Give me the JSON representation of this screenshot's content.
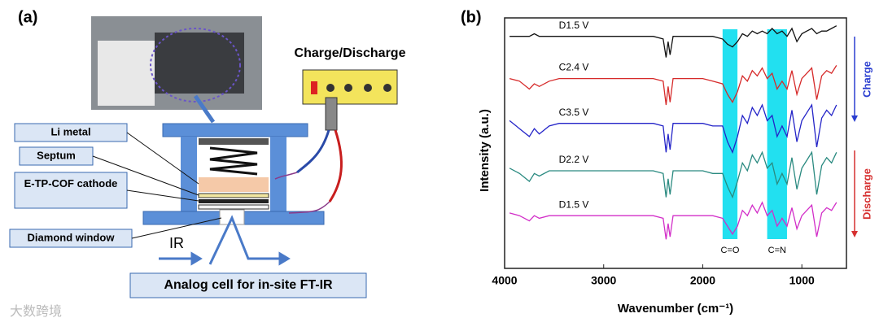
{
  "panel_a": {
    "label": "(a)",
    "power_label": "Charge/Discharge",
    "layers": [
      "Li metal",
      "Septum",
      "E-TP-COF cathode",
      "Diamond window"
    ],
    "ir_label": "IR",
    "caption": "Analog cell for in-site FT-IR"
  },
  "watermark": "大数跨境",
  "chart_data": {
    "type": "line",
    "panel_label": "(b)",
    "xlabel": "Wavenumber (cm⁻¹)",
    "ylabel": "Intensity (a.u.)",
    "xlim": [
      4000,
      550
    ],
    "xticks": [
      4000,
      3000,
      2000,
      1000
    ],
    "ylim": [
      0,
      95
    ],
    "x": [
      3950,
      3850,
      3750,
      3700,
      3650,
      3550,
      3450,
      3300,
      3100,
      2900,
      2700,
      2500,
      2400,
      2370,
      2350,
      2330,
      2300,
      2200,
      2000,
      1900,
      1800,
      1750,
      1700,
      1650,
      1600,
      1550,
      1500,
      1450,
      1400,
      1350,
      1300,
      1250,
      1200,
      1150,
      1100,
      1050,
      1000,
      950,
      900,
      850,
      800,
      750,
      700,
      650
    ],
    "series": [
      {
        "name": "D1.5 V",
        "color": "#111111",
        "values": [
          88,
          88,
          88,
          89,
          88,
          88,
          88,
          88,
          88,
          88,
          88,
          88,
          87,
          80,
          86,
          81,
          88,
          88,
          88,
          88,
          87,
          85,
          84,
          86,
          89,
          88,
          90,
          89,
          90,
          89,
          91,
          89,
          90,
          88,
          91,
          86,
          89,
          90,
          91,
          89,
          90,
          90,
          91,
          92
        ]
      },
      {
        "name": "C2.4 V",
        "color": "#d62a2a",
        "values": [
          72,
          71,
          68,
          70,
          69,
          71,
          72,
          72,
          72,
          72,
          72,
          72,
          71,
          62,
          69,
          63,
          72,
          72,
          72,
          71,
          70,
          66,
          63,
          67,
          73,
          71,
          75,
          73,
          76,
          72,
          74,
          68,
          71,
          68,
          75,
          66,
          72,
          74,
          76,
          64,
          73,
          75,
          74,
          77
        ]
      },
      {
        "name": "C3.5 V",
        "color": "#2424c8",
        "values": [
          56,
          53,
          50,
          53,
          51,
          54,
          55,
          55,
          55,
          55,
          55,
          55,
          54,
          44,
          51,
          45,
          55,
          55,
          55,
          54,
          54,
          48,
          44,
          50,
          58,
          55,
          61,
          58,
          62,
          56,
          58,
          50,
          54,
          50,
          60,
          48,
          56,
          59,
          62,
          46,
          57,
          60,
          58,
          62
        ]
      },
      {
        "name": "D2.2 V",
        "color": "#2a8a80",
        "values": [
          38,
          36,
          33,
          36,
          35,
          37,
          37,
          37,
          37,
          37,
          37,
          37,
          36,
          27,
          34,
          28,
          37,
          37,
          37,
          36,
          36,
          31,
          27,
          33,
          40,
          37,
          43,
          40,
          44,
          38,
          40,
          32,
          36,
          32,
          42,
          30,
          38,
          41,
          44,
          28,
          39,
          42,
          40,
          44
        ]
      },
      {
        "name": "D1.5 V",
        "color": "#d22ec8",
        "values": [
          21,
          20,
          18,
          20,
          19,
          20,
          20,
          20,
          20,
          20,
          20,
          20,
          19,
          11,
          17,
          12,
          20,
          20,
          20,
          20,
          19,
          16,
          13,
          16,
          22,
          20,
          24,
          21,
          25,
          20,
          22,
          16,
          19,
          16,
          23,
          15,
          20,
          22,
          24,
          12,
          21,
          23,
          22,
          25
        ]
      }
    ],
    "bands": [
      {
        "label": "C=O",
        "x": [
          1800,
          1650
        ]
      },
      {
        "label": "C=N",
        "x": [
          1350,
          1150
        ]
      }
    ],
    "band_color": "#22e0f0",
    "arrows": [
      {
        "label": "Charge",
        "color": "#2a3ed0"
      },
      {
        "label": "Discharge",
        "color": "#d63030"
      }
    ]
  }
}
